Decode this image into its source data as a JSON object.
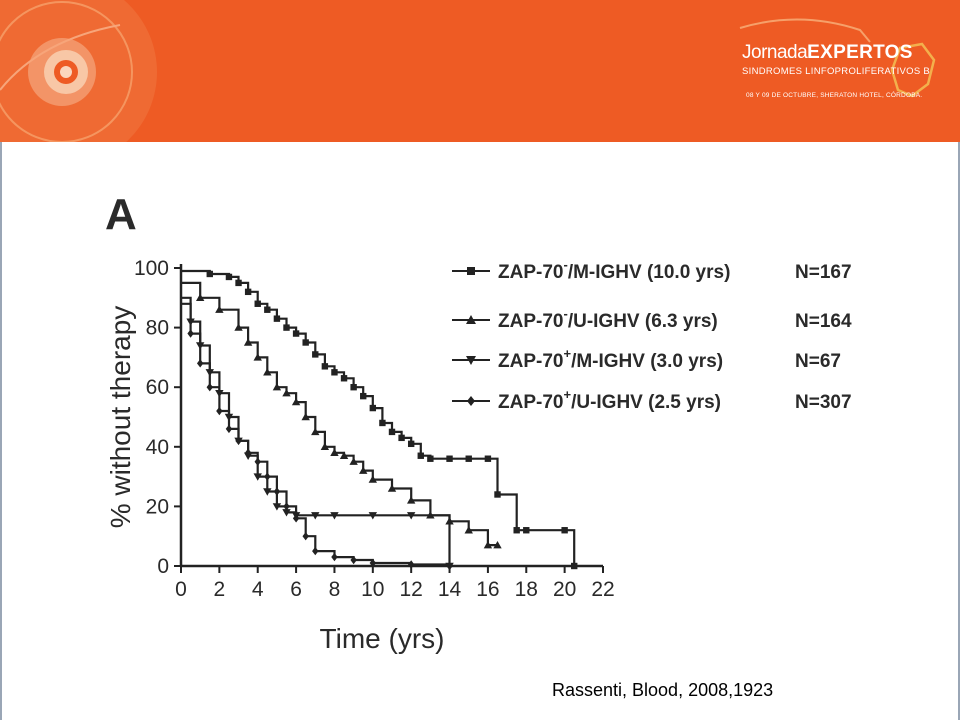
{
  "banner": {
    "logo_word1": "Jornada",
    "logo_word2": "EXPERTOS",
    "logo_subtitle": "SINDROMES LINFOPROLIFERATIVOS B",
    "logo_date": "08 Y 09 DE OCTUBRE, SHERATON HOTEL, CÓRDOBA.",
    "color": "#ee5b24"
  },
  "panel_letter": "A",
  "citation": "Rassenti, Blood, 2008,1923",
  "chart_data": {
    "type": "line",
    "xlabel": "Time (yrs)",
    "ylabel": "% without therapy",
    "xlim": [
      0,
      22
    ],
    "ylim": [
      0,
      100
    ],
    "xticks": [
      "0",
      "2",
      "4",
      "6",
      "8",
      "10",
      "12",
      "14",
      "16",
      "18",
      "20",
      "22"
    ],
    "yticks": [
      "0",
      "20",
      "40",
      "60",
      "80",
      "100"
    ],
    "grid": false,
    "legend_position": "top-right",
    "series": [
      {
        "name": "ZAP-70-/M-IGHV (10.0 yrs)",
        "label_pre": "ZAP-70",
        "label_sup": "-",
        "label_post": "/M-IGHV (10.0 yrs)",
        "n": "N=167",
        "marker": "square",
        "x": [
          0,
          1.5,
          2.5,
          3,
          3.5,
          4,
          4.5,
          5,
          5.5,
          6,
          6.5,
          7,
          7.5,
          8,
          8.5,
          9,
          9.5,
          10,
          10.5,
          11,
          11.5,
          12,
          12.5,
          13,
          14,
          15,
          16,
          16.5,
          17.5,
          18,
          20,
          20.5
        ],
        "y": [
          99,
          98,
          97,
          95,
          92,
          88,
          86,
          83,
          80,
          78,
          75,
          71,
          67,
          65,
          63,
          60,
          57,
          53,
          48,
          45,
          43,
          41,
          37,
          36,
          36,
          36,
          36,
          24,
          12,
          12,
          12,
          0
        ]
      },
      {
        "name": "ZAP-70-/U-IGHV (6.3 yrs)",
        "label_pre": "ZAP-70",
        "label_sup": "-",
        "label_post": "/U-IGHV (6.3 yrs)",
        "n": "N=164",
        "marker": "triangle",
        "x": [
          0,
          1,
          2,
          3,
          3.5,
          4,
          4.5,
          5,
          5.5,
          6,
          6.5,
          7,
          7.5,
          8,
          8.5,
          9,
          9.5,
          10,
          11,
          12,
          13,
          14,
          15,
          16,
          16.5
        ],
        "y": [
          95,
          90,
          86,
          80,
          75,
          70,
          65,
          60,
          58,
          55,
          50,
          45,
          40,
          38,
          37,
          35,
          32,
          29,
          26,
          22,
          17,
          15,
          12,
          7,
          7
        ]
      },
      {
        "name": "ZAP-70+/M-IGHV (3.0 yrs)",
        "label_pre": "ZAP-70",
        "label_sup": "+",
        "label_post": "/M-IGHV (3.0 yrs)",
        "n": "N=67",
        "marker": "inverted-triangle",
        "x": [
          0,
          0.5,
          1,
          1.5,
          2,
          2.5,
          3,
          3.5,
          4,
          4.5,
          5,
          5.5,
          6,
          7,
          8,
          10,
          12,
          14
        ],
        "y": [
          90,
          82,
          74,
          65,
          58,
          50,
          42,
          37,
          30,
          25,
          20,
          18,
          17,
          17,
          17,
          17,
          17,
          0
        ]
      },
      {
        "name": "ZAP-70+/U-IGHV (2.5 yrs)",
        "label_pre": "ZAP-70",
        "label_sup": "+",
        "label_post": "/U-IGHV (2.5 yrs)",
        "n": "N=307",
        "marker": "diamond",
        "x": [
          0,
          0.5,
          1,
          1.5,
          2,
          2.5,
          3,
          3.5,
          4,
          4.5,
          5,
          5.5,
          6,
          6.5,
          7,
          8,
          9,
          10,
          12,
          14
        ],
        "y": [
          88,
          78,
          68,
          60,
          52,
          46,
          42,
          38,
          35,
          30,
          25,
          20,
          16,
          10,
          5,
          3,
          2,
          1,
          0.5,
          0
        ]
      }
    ]
  }
}
